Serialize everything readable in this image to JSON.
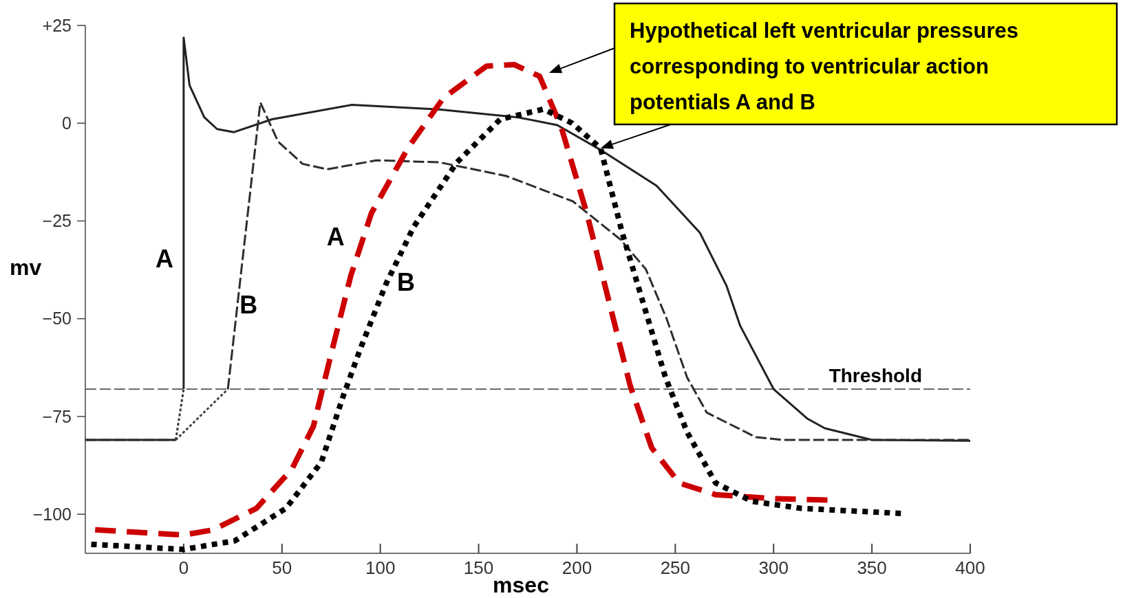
{
  "chart_data": {
    "type": "line",
    "xlabel": "msec",
    "ylabel": "mv",
    "xlim": [
      -50,
      400
    ],
    "ylim": [
      -110,
      25
    ],
    "xticks": [
      0,
      50,
      100,
      150,
      200,
      250,
      300,
      350,
      400
    ],
    "yticks": [
      {
        "value": 25,
        "label": "+25"
      },
      0,
      {
        "value": -25,
        "label": "−25"
      },
      {
        "value": -50,
        "label": "−50"
      },
      {
        "value": -75,
        "label": "−75"
      },
      {
        "value": -100,
        "label": "−100"
      }
    ],
    "grid": false,
    "legend": false,
    "marker": "none",
    "series": [
      {
        "name": "A",
        "color": "#222222",
        "line_style": "solid",
        "x": [
          -50,
          -4,
          -2,
          0,
          0,
          3,
          10.5,
          17,
          25.4,
          45,
          85.6,
          130,
          170,
          190,
          211.6,
          240.5,
          262.5,
          276,
          283,
          300,
          317,
          326,
          350,
          400
        ],
        "values": [
          -81,
          -81,
          null,
          -68,
          21.9,
          9.7,
          1.5,
          -1.5,
          -2.3,
          1,
          4.7,
          3.5,
          1.5,
          -0.5,
          -6.7,
          -16,
          -28,
          -41.5,
          -51.8,
          -68,
          -75.5,
          -78,
          -81,
          -81.2
        ]
      },
      {
        "color": "#3a3a3a",
        "line_style": "dotted",
        "x": [
          -4,
          0
        ],
        "values": [
          -81,
          -68
        ]
      },
      {
        "name": "B",
        "color": "#2e2e2e",
        "line_style": "dashed",
        "x": [
          -50,
          -4,
          -2,
          22.5,
          39,
          48,
          60.5,
          73,
          98,
          130,
          164,
          198,
          222,
          235,
          245.6,
          256,
          266,
          291,
          305,
          400
        ],
        "values": [
          -81,
          -81,
          null,
          -68,
          5.3,
          -4.7,
          -10.4,
          -11.8,
          -9.5,
          -10,
          -13.5,
          -20,
          -29.7,
          -37.3,
          -50,
          -65,
          -74,
          -80.3,
          -81,
          -81
        ]
      },
      {
        "color": "#444444",
        "line_style": "dotted",
        "x": [
          -4,
          22.5
        ],
        "values": [
          -81,
          -68
        ]
      },
      {
        "name": "A",
        "color": "#cc0000",
        "line_style": "dashed",
        "x": [
          -45,
          0,
          15,
          37,
          55,
          66,
          75,
          85,
          95.5,
          114,
          132,
          154,
          168,
          181,
          192,
          205,
          216,
          227,
          238,
          252,
          270.5,
          300,
          329
        ],
        "values": [
          -104,
          -105.3,
          -104,
          -98.5,
          -88.5,
          -77.5,
          -59,
          -39,
          -23,
          -6.4,
          6.4,
          14.6,
          15,
          12,
          -1,
          -23,
          -45,
          -67,
          -83,
          -92,
          -95,
          -96,
          -96.4
        ]
      },
      {
        "name": "B",
        "color": "#000000",
        "line_style": "dotted",
        "x": [
          -47,
          0,
          26,
          52,
          70,
          81,
          90,
          103,
          117,
          139,
          161,
          183,
          197.6,
          212,
          223,
          234,
          245,
          256,
          270.5,
          289,
          314,
          365
        ],
        "values": [
          -107.7,
          -109,
          -106.8,
          -98.5,
          -86.7,
          -70,
          -57.5,
          -41,
          -26.5,
          -10,
          1,
          3.6,
          0,
          -6.4,
          -28,
          -46.5,
          -65,
          -79,
          -92,
          -96.7,
          -98.5,
          -99.8
        ]
      }
    ],
    "ref_lines": [
      {
        "axis": "y",
        "value": -68,
        "label": "Threshold",
        "color": "#555555",
        "line_style": "dashed"
      }
    ],
    "annotations": [
      {
        "text": "Hypothetical left ventricular pressures corresponding to ventricular action potentials A and B",
        "x": 212,
        "y": -6.4
      }
    ]
  }
}
